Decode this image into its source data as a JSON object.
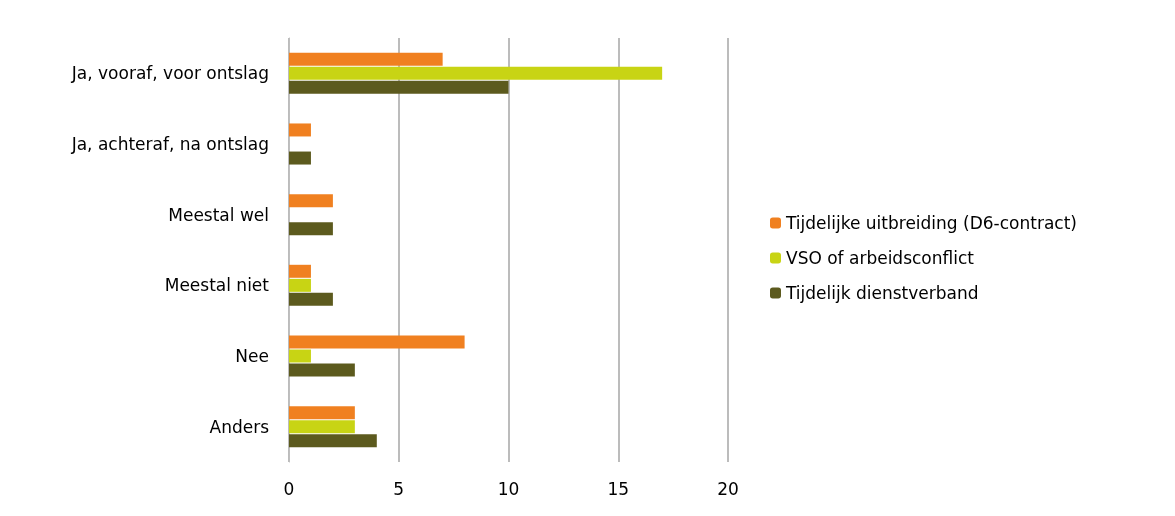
{
  "chart_data": {
    "type": "bar",
    "orientation": "horizontal",
    "categories": [
      "Ja, vooraf, voor ontslag",
      "Ja, achteraf, na ontslag",
      "Meestal wel",
      "Meestal niet",
      "Nee",
      "Anders"
    ],
    "series": [
      {
        "name": "Tijdelijke uitbreiding (D6-contract)",
        "color": "#f08020",
        "values": [
          7,
          1,
          2,
          1,
          8,
          3
        ]
      },
      {
        "name": "VSO of arbeidsconflict",
        "color": "#c8d414",
        "values": [
          17,
          0,
          0,
          1,
          1,
          3
        ]
      },
      {
        "name": "Tijdelijk dienstverband",
        "color": "#5c5a1e",
        "values": [
          10,
          1,
          2,
          2,
          3,
          4
        ]
      }
    ],
    "xlim": [
      0,
      20
    ],
    "xticks": [
      0,
      5,
      10,
      15,
      20
    ],
    "grid": "x",
    "legend": "right"
  }
}
